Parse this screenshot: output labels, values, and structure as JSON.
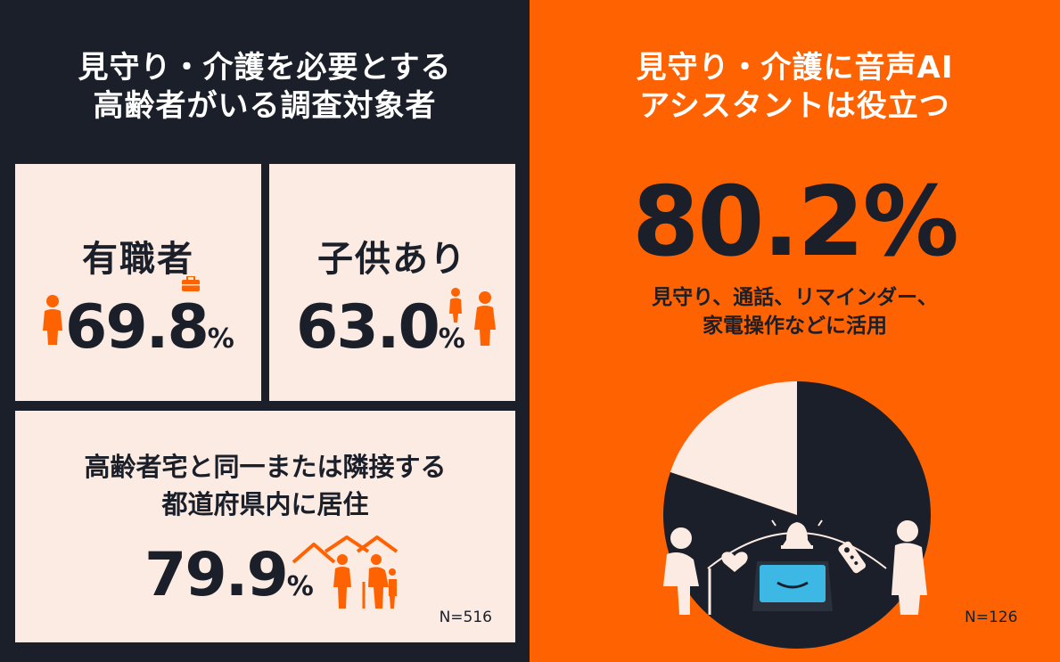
{
  "left_panel": {
    "title_line1": "見守り・介護を必要とする",
    "title_line2": "高齢者がいる調査対象者",
    "cards": {
      "employed": {
        "label": "有職者",
        "value": "69.8",
        "unit": "%"
      },
      "children": {
        "label": "子供あり",
        "value": "63.0",
        "unit": "%"
      },
      "residence": {
        "label_line1": "高齢者宅と同一または隣接する",
        "label_line2": "都道府県内に居住",
        "value": "79.9",
        "unit": "%"
      }
    },
    "sample_size": "N=516"
  },
  "right_panel": {
    "title_line1": "見守り・介護に音声AI",
    "title_line2": "アシスタントは役立つ",
    "headline_value": "80.2%",
    "sub_line1": "見守り、通話、リマインダー、",
    "sub_line2": "家電操作などに活用",
    "sample_size": "N=126"
  },
  "colors": {
    "navy": "#1a1f29",
    "orange": "#ff6200",
    "cream": "#fcebe2",
    "white": "#ffffff"
  },
  "icons": [
    "person-icon",
    "briefcase-icon",
    "parent-child-icon",
    "houses-icon",
    "elderly-couple-icon",
    "alarm-bell-icon",
    "heart-icon",
    "remote-icon",
    "smart-display-icon"
  ],
  "chart_data": [
    {
      "type": "pie",
      "values": [
        80.2,
        19.8
      ],
      "categories": [
        "役立つ",
        ""
      ],
      "colors": [
        "#1a1f29",
        "#fcebe2"
      ],
      "title": ""
    }
  ]
}
